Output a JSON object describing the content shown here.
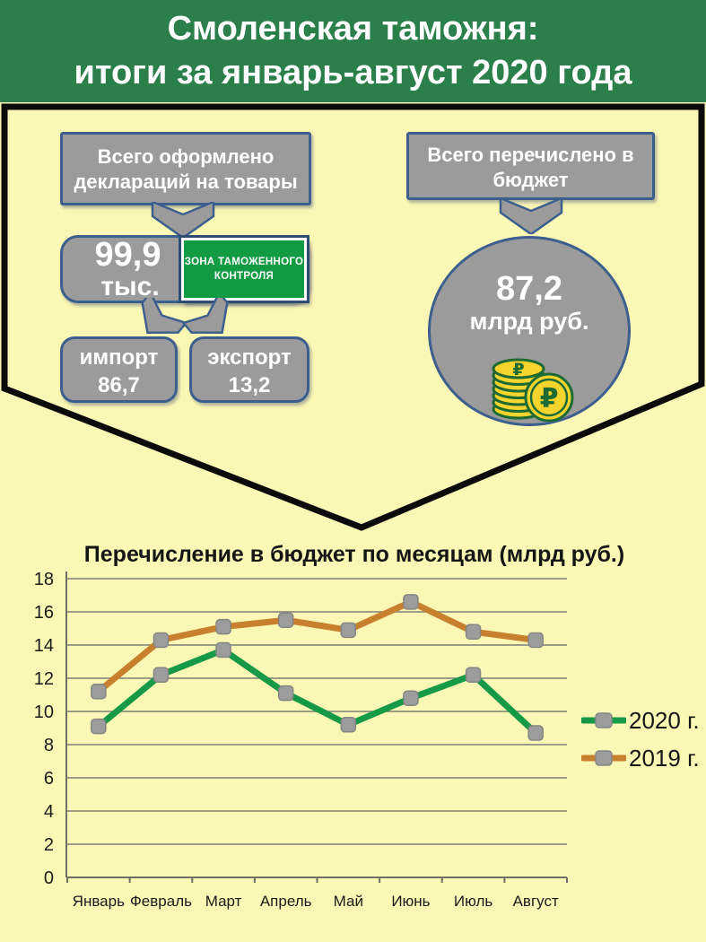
{
  "header": {
    "line1": "Смоленская таможня:",
    "line2": "итоги за январь-август 2020 года"
  },
  "declarations": {
    "title_line1": "Всего оформлено",
    "title_line2": "деклараций на товары",
    "total_value": "99,9",
    "total_unit": "тыс.",
    "sign_line1": "ЗОНА ТАМОЖЕННОГО",
    "sign_line2": "КОНТРОЛЯ",
    "import_label": "импорт",
    "import_value": "86,7",
    "export_label": "экспорт",
    "export_value": "13,2"
  },
  "budget": {
    "title_line1": "Всего перечислено в",
    "title_line2": "бюджет",
    "total_value": "87,2",
    "total_unit": "млрд руб."
  },
  "chart_data": {
    "type": "line",
    "title": "Перечисление в бюджет по месяцам (млрд руб.)",
    "categories": [
      "Январь",
      "Февраль",
      "Март",
      "Апрель",
      "Май",
      "Июнь",
      "Июль",
      "Август"
    ],
    "series": [
      {
        "name": "2020 г.",
        "color": "#169a47",
        "values": [
          9.1,
          12.2,
          13.7,
          11.1,
          9.2,
          10.8,
          12.2,
          8.7
        ]
      },
      {
        "name": "2019 г.",
        "color": "#c8802e",
        "values": [
          11.2,
          14.3,
          15.1,
          15.5,
          14.9,
          16.6,
          14.8,
          14.3
        ]
      }
    ],
    "ylim": [
      0,
      18
    ],
    "ytick_step": 2,
    "xlabel": "",
    "ylabel": "",
    "grid": true,
    "legend_position": "right",
    "marker_color": "#9c9c9c"
  },
  "colors": {
    "header_green": "#2b7f4b",
    "background_yellow": "#fbf7b5",
    "box_gray": "#9b9b9b",
    "border_blue": "#3d5f8e",
    "sign_green": "#129b43",
    "coin_yellow": "#f6d42e",
    "coin_outline_green": "#1d6b33",
    "funnel_outline": "#000000"
  }
}
